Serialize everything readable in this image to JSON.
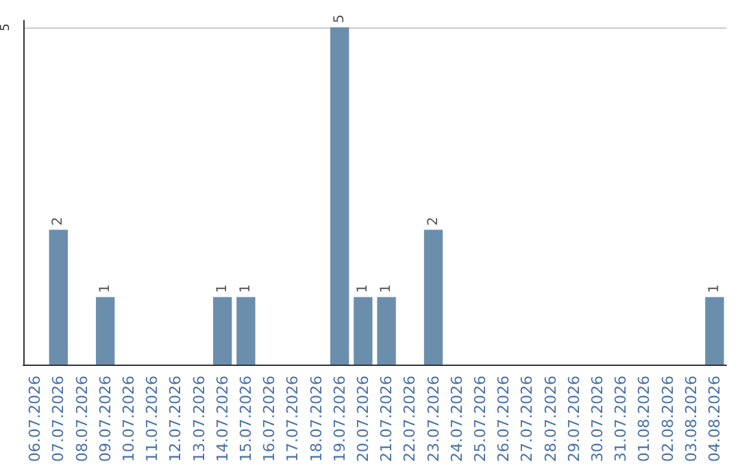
{
  "chart_data": {
    "type": "bar",
    "categories": [
      "06.07.2026",
      "07.07.2026",
      "08.07.2026",
      "09.07.2026",
      "10.07.2026",
      "11.07.2026",
      "12.07.2026",
      "13.07.2026",
      "14.07.2026",
      "15.07.2026",
      "16.07.2026",
      "17.07.2026",
      "18.07.2026",
      "19.07.2026",
      "20.07.2026",
      "21.07.2026",
      "22.07.2026",
      "23.07.2026",
      "24.07.2026",
      "25.07.2026",
      "26.07.2026",
      "27.07.2026",
      "28.07.2026",
      "29.07.2026",
      "30.07.2026",
      "31.07.2026",
      "01.08.2026",
      "02.08.2026",
      "03.08.2026",
      "04.08.2026"
    ],
    "values": [
      0,
      2,
      0,
      1,
      0,
      0,
      0,
      0,
      1,
      1,
      0,
      0,
      0,
      5,
      1,
      1,
      0,
      2,
      0,
      0,
      0,
      0,
      0,
      0,
      0,
      0,
      0,
      0,
      0,
      1
    ],
    "value_labels": [
      null,
      "2",
      null,
      "1",
      null,
      null,
      null,
      null,
      "1",
      "1",
      null,
      null,
      null,
      "5",
      "1",
      "1",
      null,
      "2",
      null,
      null,
      null,
      null,
      null,
      null,
      null,
      null,
      null,
      null,
      null,
      "1"
    ],
    "color": "#6c8ead",
    "ylim": [
      0,
      5.1
    ],
    "yticks": [
      5
    ],
    "grid": "y"
  }
}
